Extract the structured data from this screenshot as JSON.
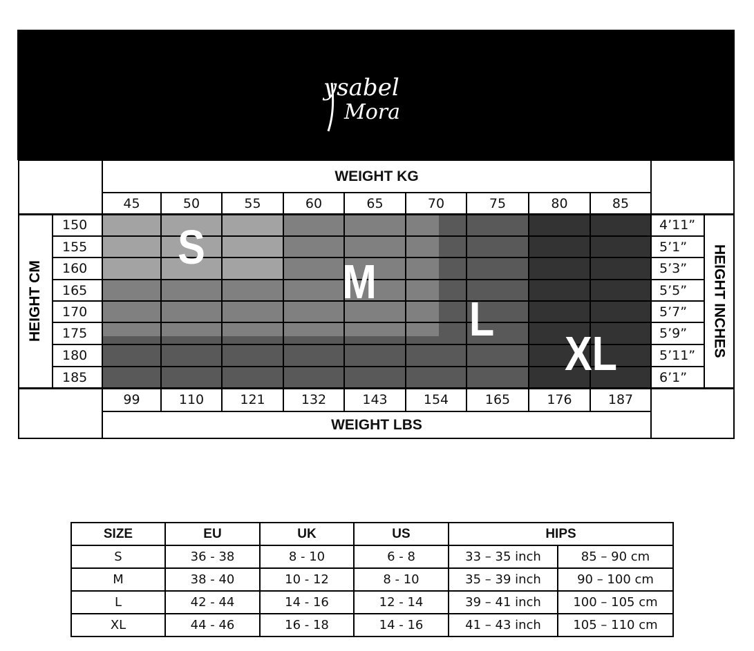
{
  "brand": {
    "logo_text": "Ysabel Mora"
  },
  "chart": {
    "weight_kg_title": "WEIGHT KG",
    "weight_lbs_title": "WEIGHT LBS",
    "height_cm_title": "HEIGHT CM",
    "height_inches_title": "HEIGHT INCHES",
    "weights_kg": [
      "45",
      "50",
      "55",
      "60",
      "65",
      "70",
      "75",
      "80",
      "85"
    ],
    "weights_lbs": [
      "99",
      "110",
      "121",
      "132",
      "143",
      "154",
      "165",
      "176",
      "187"
    ],
    "heights_cm": [
      "150",
      "155",
      "160",
      "165",
      "170",
      "175",
      "180",
      "185"
    ],
    "heights_in": [
      "4’11”",
      "5’1”",
      "5’3”",
      "5’5”",
      "5’7”",
      "5’9”",
      "5’11”",
      "6’1”"
    ],
    "zones": [
      {
        "size": "S",
        "color": "#a3a3a3"
      },
      {
        "size": "M",
        "color": "#808080"
      },
      {
        "size": "L",
        "color": "#595959"
      },
      {
        "size": "XL",
        "color": "#333333"
      }
    ]
  },
  "size_table": {
    "headers": [
      "SIZE",
      "EU",
      "UK",
      "US",
      "HIPS"
    ],
    "rows": [
      [
        "S",
        "36 - 38",
        "8 - 10",
        "6 - 8",
        "33 – 35 inch",
        "85 – 90 cm"
      ],
      [
        "M",
        "38 - 40",
        "10 - 12",
        "8 - 10",
        "35 – 39 inch",
        "90 – 100 cm"
      ],
      [
        "L",
        "42 - 44",
        "14 - 16",
        "12 - 14",
        "39 – 41 inch",
        "100 – 105 cm"
      ],
      [
        "XL",
        "44 - 46",
        "16 - 18",
        "14 - 16",
        "41 – 43 inch",
        "105 – 110 cm"
      ]
    ]
  }
}
